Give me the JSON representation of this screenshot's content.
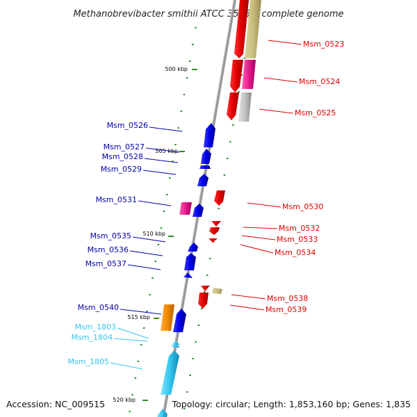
{
  "title": "Methanobrevibacter smithii ATCC 35061, complete genome",
  "footer": {
    "accession": "Accession: NC_009515",
    "topology": "Topology: circular; Length: 1,853,160 bp; Genes: 1,835"
  },
  "colors": {
    "forward_label": "#0000aa",
    "reverse_label": "#dd0000",
    "rna_label": "#33c6ee",
    "backbone": "#808080",
    "tick": "#2e8b2e"
  },
  "scale_labels": [
    "500 kbp",
    "505 kbp",
    "510 kbp",
    "515 kbp",
    "520 kbp"
  ],
  "genes": [
    {
      "name": "Msm_0523",
      "strand": "reverse",
      "color": "#ee0000"
    },
    {
      "name": "Msm_0524",
      "strand": "reverse",
      "color": "#ee0000"
    },
    {
      "name": "Msm_0525",
      "strand": "reverse",
      "color": "#ee0000"
    },
    {
      "name": "Msm_0526",
      "strand": "forward",
      "color": "#0000ee"
    },
    {
      "name": "Msm_0527",
      "strand": "forward",
      "color": "#0000ee"
    },
    {
      "name": "Msm_0528",
      "strand": "forward",
      "color": "#0000ee"
    },
    {
      "name": "Msm_0529",
      "strand": "forward",
      "color": "#0000ee"
    },
    {
      "name": "Msm_0530",
      "strand": "reverse",
      "color": "#ee0000"
    },
    {
      "name": "Msm_0531",
      "strand": "forward",
      "color": "#e8198b"
    },
    {
      "name": "Msm_0532",
      "strand": "reverse",
      "color": "#ee0000"
    },
    {
      "name": "Msm_0533",
      "strand": "reverse",
      "color": "#ee0000"
    },
    {
      "name": "Msm_0534",
      "strand": "reverse",
      "color": "#ee0000"
    },
    {
      "name": "Msm_0535",
      "strand": "forward",
      "color": "#0000ee"
    },
    {
      "name": "Msm_0536",
      "strand": "forward",
      "color": "#0000ee"
    },
    {
      "name": "Msm_0537",
      "strand": "forward",
      "color": "#0000ee"
    },
    {
      "name": "Msm_0538",
      "strand": "reverse",
      "color": "#ee0000"
    },
    {
      "name": "Msm_0539",
      "strand": "reverse",
      "color": "#ee0000"
    },
    {
      "name": "Msm_0540",
      "strand": "forward",
      "color": "#0000ee"
    },
    {
      "name": "Msm_1803",
      "strand": "forward",
      "color": "#33c6ee"
    },
    {
      "name": "Msm_1804",
      "strand": "forward",
      "color": "#33c6ee"
    },
    {
      "name": "Msm_1805",
      "strand": "forward",
      "color": "#33c6ee"
    }
  ]
}
